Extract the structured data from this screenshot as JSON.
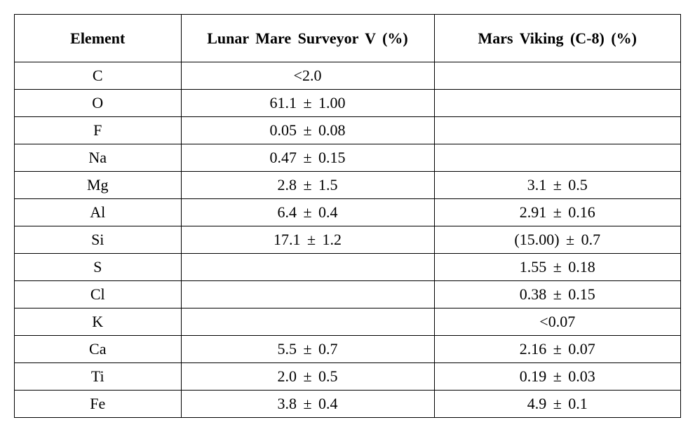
{
  "table": {
    "columns": [
      "Element",
      "Lunar Mare Surveyor V (%)",
      "Mars Viking (C-8) (%)"
    ],
    "rows": [
      [
        "C",
        "<2.0",
        ""
      ],
      [
        "O",
        "61.1 ± 1.00",
        ""
      ],
      [
        "F",
        "0.05 ± 0.08",
        ""
      ],
      [
        "Na",
        "0.47 ± 0.15",
        ""
      ],
      [
        "Mg",
        "2.8 ± 1.5",
        "3.1 ± 0.5"
      ],
      [
        "Al",
        "6.4 ± 0.4",
        "2.91 ± 0.16"
      ],
      [
        "Si",
        "17.1 ± 1.2",
        "(15.00) ± 0.7"
      ],
      [
        "S",
        "",
        "1.55 ± 0.18"
      ],
      [
        "Cl",
        "",
        "0.38 ± 0.15"
      ],
      [
        "K",
        "",
        "<0.07"
      ],
      [
        "Ca",
        "5.5 ± 0.7",
        "2.16 ± 0.07"
      ],
      [
        "Ti",
        "2.0 ± 0.5",
        "0.19 ± 0.03"
      ],
      [
        "Fe",
        "3.8 ± 0.4",
        "4.9 ± 0.1"
      ]
    ],
    "column_widths_pct": [
      25,
      38,
      37
    ],
    "border_color": "#000000",
    "background_color": "#ffffff",
    "text_color": "#000000",
    "header_fontsize": 22,
    "cell_fontsize": 22,
    "header_fontweight": "bold",
    "cell_fontweight": "normal",
    "font_family": "Times New Roman",
    "header_row_height": 68,
    "data_row_height": 39,
    "text_align": "center"
  }
}
